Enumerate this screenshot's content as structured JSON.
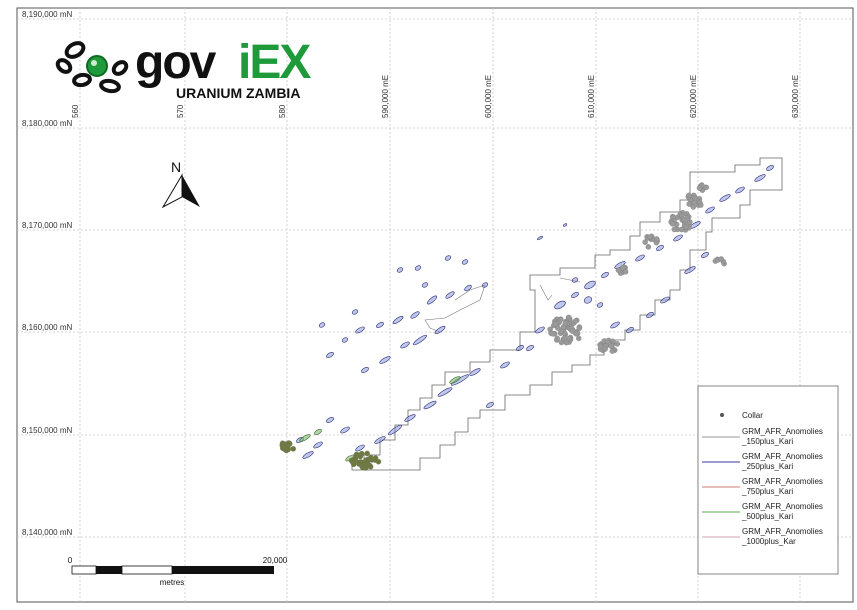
{
  "map": {
    "grid_y_labels": [
      "8,190,000  mN",
      "8,180,000  mN",
      "8,170,000  mN",
      "8,160,000  mN",
      "8,150,000  mN",
      "8,140,000  mN"
    ],
    "grid_x_labels": [
      "560",
      "570",
      "580",
      "590,000  mE",
      "600,000  mE",
      "610,000  mE",
      "620,000  mE",
      "630,000  mE"
    ],
    "north_label": "N",
    "scale_bar": {
      "start_label": "0",
      "end_label": "20,000",
      "unit_label": "metres"
    },
    "logo": {
      "brand": "goviex",
      "subtitle": "URANIUM ZAMBIA",
      "brand_color": "#1e9a3a"
    }
  },
  "legend": {
    "items": [
      {
        "label": "Collar",
        "symbol": "dot",
        "color": "#555555"
      },
      {
        "label": "GRM_AFR_Anomolies _150plus_Kari",
        "symbol": "line",
        "color": "#9a9a9a"
      },
      {
        "label": "GRM_AFR_Anomolies _250plus_Kari",
        "symbol": "line",
        "color": "#3a3aa0"
      },
      {
        "label": "GRM_AFR_Anomolies _750plus_Kari",
        "symbol": "line",
        "color": "#d07a7a"
      },
      {
        "label": "GRM_AFR_Anomolies _500plus_Kari",
        "symbol": "line",
        "color": "#5aa84a"
      },
      {
        "label": "GRM_AFR_Anomolies _1000plus_Kar",
        "symbol": "line",
        "color": "#d0a0b0"
      }
    ]
  }
}
